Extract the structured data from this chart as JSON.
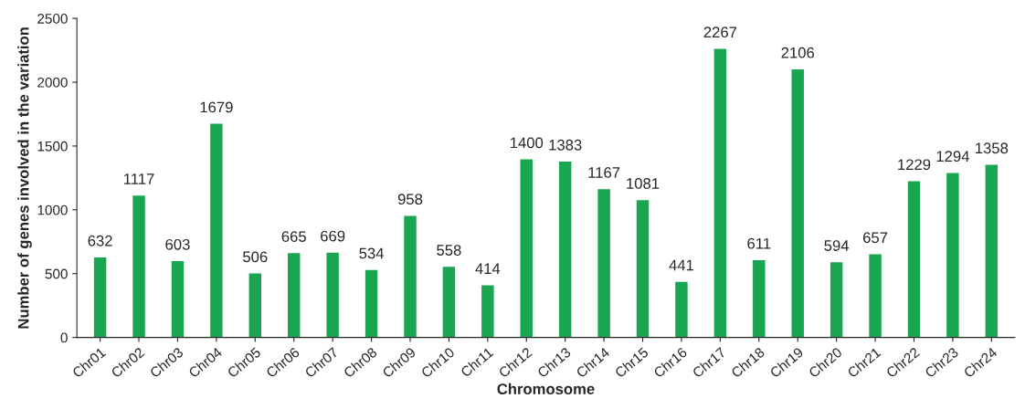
{
  "chart_data": {
    "type": "bar",
    "xlabel": "Chromosome",
    "ylabel": "Number of genes involved in the variation",
    "categories": [
      "Chr01",
      "Chr02",
      "Chr03",
      "Chr04",
      "Chr05",
      "Chr06",
      "Chr07",
      "Chr08",
      "Chr09",
      "Chr10",
      "Chr11",
      "Chr12",
      "Chr13",
      "Chr14",
      "Chr15",
      "Chr16",
      "Chr17",
      "Chr18",
      "Chr19",
      "Chr20",
      "Chr21",
      "Chr22",
      "Chr23",
      "Chr24"
    ],
    "values": [
      632,
      1117,
      603,
      1679,
      506,
      665,
      669,
      534,
      958,
      558,
      414,
      1400,
      1383,
      1167,
      1081,
      441,
      2267,
      611,
      2106,
      594,
      657,
      1229,
      1294,
      1358
    ],
    "color": "#1aa550",
    "ylim": [
      0,
      2500
    ],
    "yticks": [
      0,
      500,
      1000,
      1500,
      2000,
      2500
    ],
    "data_labels": true,
    "grid": false,
    "legend": false
  }
}
